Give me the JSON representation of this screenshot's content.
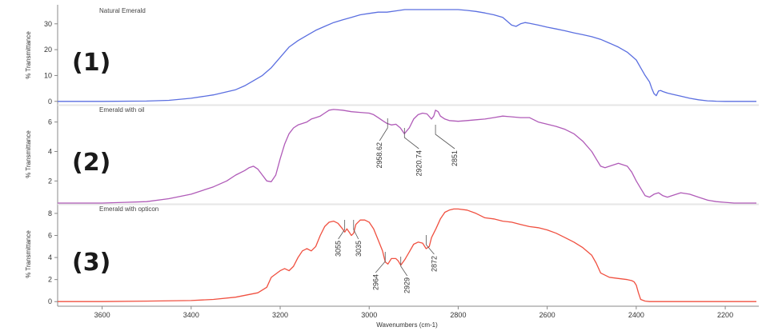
{
  "chart_data": {
    "type": "line",
    "xlabel": "Wavenumbers (cm-1)",
    "xlim": [
      3700,
      2130
    ],
    "xticks": [
      3600,
      3400,
      3200,
      3000,
      2800,
      2600,
      2400,
      2200
    ],
    "panels": [
      {
        "number": "(1)",
        "title": "Natural Emerald",
        "ylabel": "% Transmittance",
        "ylim": [
          -1,
          35.5
        ],
        "yticks": [
          0,
          10,
          20,
          30
        ],
        "color": "#5b6fe0",
        "series": {
          "x": [
            3700,
            3600,
            3500,
            3450,
            3400,
            3350,
            3300,
            3280,
            3260,
            3240,
            3220,
            3200,
            3190,
            3180,
            3160,
            3140,
            3120,
            3100,
            3080,
            3060,
            3040,
            3020,
            3000,
            2980,
            2960,
            2940,
            2920,
            2900,
            2880,
            2860,
            2840,
            2820,
            2800,
            2780,
            2760,
            2740,
            2720,
            2700,
            2690,
            2680,
            2670,
            2660,
            2650,
            2640,
            2620,
            2600,
            2580,
            2560,
            2540,
            2520,
            2500,
            2480,
            2460,
            2440,
            2420,
            2400,
            2390,
            2380,
            2370,
            2365,
            2360,
            2355,
            2350,
            2345,
            2340,
            2330,
            2320,
            2300,
            2280,
            2260,
            2240,
            2220,
            2200,
            2180,
            2130
          ],
          "y": [
            0,
            0,
            0.1,
            0.4,
            1.2,
            2.5,
            4.5,
            6,
            8,
            10,
            13,
            17,
            19,
            21,
            23.5,
            25.5,
            27.5,
            29,
            30.5,
            31.5,
            32.5,
            33.5,
            34,
            34.5,
            34.5,
            35,
            35.5,
            35.5,
            35.5,
            35.5,
            35.5,
            35.5,
            35.5,
            35.2,
            34.8,
            34.2,
            33.5,
            32.5,
            31,
            29.5,
            29,
            30,
            30.5,
            30.2,
            29.5,
            28.7,
            28,
            27.3,
            26.5,
            25.8,
            25,
            24,
            22.5,
            21,
            19,
            16,
            13,
            10,
            7.5,
            5,
            3,
            2.2,
            4,
            4.2,
            3.8,
            3.2,
            2.8,
            2,
            1.2,
            0.6,
            0.2,
            0.05,
            0,
            0,
            0
          ]
        },
        "peaks": []
      },
      {
        "number": "(2)",
        "title": "Emerald with oil",
        "ylabel": "% Transmittance",
        "ylim": [
          0.5,
          6.9
        ],
        "yticks": [
          2,
          4,
          6
        ],
        "color": "#b05bb8",
        "series": {
          "x": [
            3700,
            3600,
            3550,
            3500,
            3450,
            3400,
            3350,
            3320,
            3300,
            3280,
            3270,
            3260,
            3250,
            3240,
            3230,
            3220,
            3210,
            3200,
            3190,
            3180,
            3170,
            3160,
            3140,
            3130,
            3120,
            3110,
            3100,
            3090,
            3080,
            3060,
            3040,
            3020,
            3000,
            2990,
            2980,
            2970,
            2960,
            2950,
            2940,
            2930,
            2921,
            2910,
            2900,
            2890,
            2880,
            2870,
            2860,
            2855,
            2851,
            2845,
            2840,
            2830,
            2820,
            2800,
            2780,
            2760,
            2740,
            2720,
            2700,
            2680,
            2660,
            2640,
            2620,
            2600,
            2580,
            2560,
            2540,
            2520,
            2500,
            2490,
            2480,
            2470,
            2460,
            2440,
            2420,
            2410,
            2400,
            2390,
            2380,
            2370,
            2360,
            2350,
            2340,
            2330,
            2320,
            2300,
            2280,
            2260,
            2240,
            2220,
            2200,
            2180,
            2130
          ],
          "y": [
            0.5,
            0.5,
            0.55,
            0.6,
            0.8,
            1.1,
            1.6,
            2.0,
            2.4,
            2.7,
            2.9,
            3.0,
            2.8,
            2.4,
            2.0,
            1.95,
            2.4,
            3.5,
            4.5,
            5.2,
            5.6,
            5.8,
            6.0,
            6.2,
            6.3,
            6.4,
            6.6,
            6.8,
            6.85,
            6.8,
            6.7,
            6.65,
            6.6,
            6.5,
            6.3,
            6.1,
            5.9,
            5.8,
            5.85,
            5.6,
            5.2,
            5.6,
            6.2,
            6.5,
            6.6,
            6.55,
            6.2,
            6.4,
            6.8,
            6.7,
            6.4,
            6.2,
            6.1,
            6.05,
            6.1,
            6.15,
            6.2,
            6.3,
            6.4,
            6.35,
            6.3,
            6.3,
            6.0,
            5.85,
            5.7,
            5.5,
            5.2,
            4.7,
            4.0,
            3.5,
            3.0,
            2.9,
            3.0,
            3.2,
            3.0,
            2.6,
            2.0,
            1.5,
            1.0,
            0.9,
            1.1,
            1.2,
            1.0,
            0.9,
            1.0,
            1.2,
            1.1,
            0.9,
            0.7,
            0.6,
            0.55,
            0.5,
            0.5
          ]
        },
        "peaks": [
          {
            "x": 2958.62,
            "label": "2958.62"
          },
          {
            "x": 2920.74,
            "label": "2920.74"
          },
          {
            "x": 2851,
            "label": "2851"
          }
        ]
      },
      {
        "number": "(3)",
        "title": "Emerald with opticon",
        "ylabel": "% Transmittance",
        "ylim": [
          -0.2,
          8.5
        ],
        "yticks": [
          0,
          2,
          4,
          6,
          8
        ],
        "color": "#f05040",
        "series": {
          "x": [
            3700,
            3600,
            3500,
            3400,
            3350,
            3300,
            3250,
            3230,
            3220,
            3200,
            3190,
            3180,
            3170,
            3160,
            3150,
            3140,
            3130,
            3120,
            3110,
            3100,
            3090,
            3080,
            3070,
            3060,
            3055,
            3050,
            3045,
            3040,
            3035,
            3030,
            3020,
            3010,
            3000,
            2990,
            2980,
            2970,
            2964,
            2958,
            2950,
            2940,
            2935,
            2929,
            2920,
            2910,
            2900,
            2890,
            2880,
            2872,
            2865,
            2860,
            2850,
            2840,
            2830,
            2820,
            2810,
            2800,
            2780,
            2760,
            2740,
            2720,
            2700,
            2680,
            2660,
            2640,
            2620,
            2600,
            2580,
            2560,
            2540,
            2520,
            2500,
            2490,
            2480,
            2460,
            2440,
            2420,
            2410,
            2405,
            2400,
            2395,
            2390,
            2380,
            2370,
            2360,
            2300,
            2200,
            2130
          ],
          "y": [
            0,
            0,
            0.05,
            0.1,
            0.2,
            0.4,
            0.8,
            1.3,
            2.2,
            2.8,
            3.0,
            2.8,
            3.2,
            4.0,
            4.6,
            4.8,
            4.6,
            5.0,
            6.0,
            6.8,
            7.2,
            7.3,
            7.1,
            6.6,
            6.3,
            6.6,
            6.3,
            6.0,
            6.2,
            7.0,
            7.4,
            7.4,
            7.2,
            6.6,
            5.6,
            4.6,
            3.6,
            3.4,
            3.9,
            3.9,
            3.7,
            3.3,
            3.8,
            4.5,
            5.2,
            5.4,
            5.3,
            4.8,
            5.0,
            5.8,
            6.6,
            7.5,
            8.1,
            8.3,
            8.4,
            8.4,
            8.3,
            8.0,
            7.6,
            7.5,
            7.3,
            7.2,
            7.0,
            6.8,
            6.7,
            6.5,
            6.2,
            5.8,
            5.4,
            4.9,
            4.2,
            3.5,
            2.6,
            2.2,
            2.1,
            2.0,
            1.9,
            1.8,
            1.5,
            0.8,
            0.2,
            0.05,
            0,
            0,
            0,
            0,
            0
          ]
        },
        "peaks": [
          {
            "x": 3055,
            "label": "3055"
          },
          {
            "x": 3035,
            "label": "3035"
          },
          {
            "x": 2964,
            "label": "2964"
          },
          {
            "x": 2929,
            "label": "2929"
          },
          {
            "x": 2872,
            "label": "2872"
          }
        ]
      }
    ]
  }
}
